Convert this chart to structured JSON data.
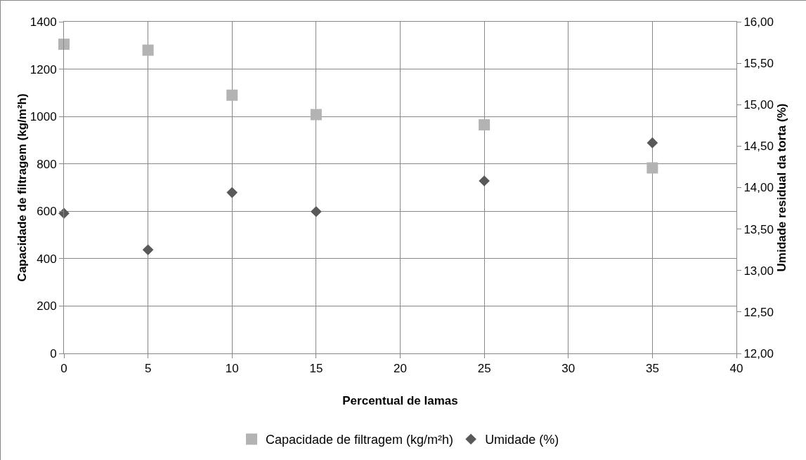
{
  "chart_data": {
    "type": "scatter",
    "xlabel": "Percentual de lamas",
    "ylabel": "Capacidade de filtragem (kg/m²h)",
    "y2label": "Umidade residual da torta (%)",
    "x": [
      0,
      5,
      10,
      15,
      25,
      35
    ],
    "series": [
      {
        "name": "Capacidade de filtragem (kg/m²h)",
        "color": "#b3b3b3",
        "marker": "square",
        "values": [
          1305,
          1280,
          1090,
          1008,
          965,
          783
        ]
      },
      {
        "name": "Umidade (%)",
        "color": "#595959",
        "marker": "diamond",
        "axis": "y2",
        "values": [
          13.69,
          13.25,
          13.94,
          13.71,
          14.08,
          14.54
        ]
      }
    ],
    "xlim": [
      0,
      40
    ],
    "xticks": [
      0,
      5,
      10,
      15,
      20,
      25,
      30,
      35,
      40
    ],
    "ylim": [
      0,
      1400
    ],
    "yticks": [
      0,
      200,
      400,
      600,
      800,
      1000,
      1200,
      1400
    ],
    "y2lim": [
      12,
      16
    ],
    "y2ticks": [
      {
        "value": 12,
        "label": "12,00"
      },
      {
        "value": 12.5,
        "label": "12,50"
      },
      {
        "value": 13,
        "label": "13,00"
      },
      {
        "value": 13.5,
        "label": "13,50"
      },
      {
        "value": 14,
        "label": "14,00"
      },
      {
        "value": 14.5,
        "label": "14,50"
      },
      {
        "value": 15,
        "label": "15,00"
      },
      {
        "value": 15.5,
        "label": "15,50"
      },
      {
        "value": 16,
        "label": "16,00"
      }
    ],
    "grid": true,
    "legend": "bottom"
  }
}
